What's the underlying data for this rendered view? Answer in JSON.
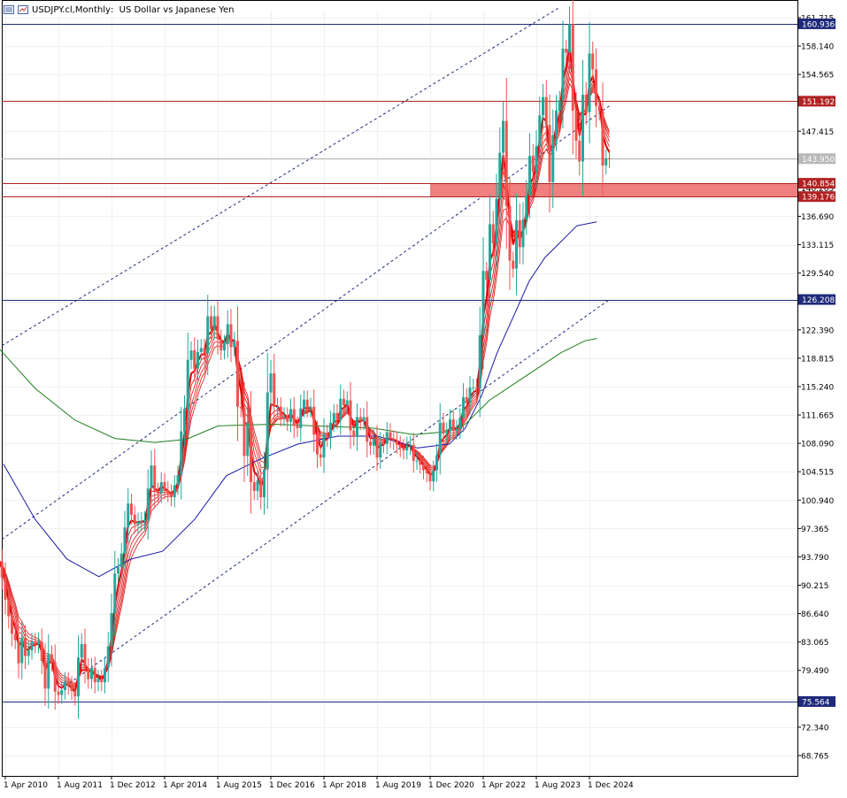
{
  "header": {
    "symbol": "USDJPY.cl",
    "timeframe": "Monthly",
    "description": "US Dollar vs Japanese Yen"
  },
  "colors": {
    "candle_up": "#26a69a",
    "candle_down": "#ef5350",
    "ma_fast": "#e00000",
    "ma_blue": "#1a1aa6",
    "ma_green": "#1e7d1e",
    "level_blue": "#1f2a7a",
    "level_red": "#b22222",
    "zone": "#f08080",
    "channel": "#1f2a7a"
  },
  "chart_data": {
    "type": "candlestick",
    "title": "USDJPY.cl, Monthly: US Dollar vs Japanese Yen",
    "ylim": [
      66.2,
      162.6
    ],
    "y_ticks": [
      "161.715",
      "158.140",
      "154.565",
      "150.990",
      "147.415",
      "143.840",
      "140.265",
      "136.690",
      "133.115",
      "129.540",
      "125.965",
      "122.390",
      "118.815",
      "115.240",
      "111.665",
      "108.090",
      "104.515",
      "100.940",
      "97.365",
      "93.790",
      "90.215",
      "86.640",
      "83.065",
      "79.490",
      "75.915",
      "72.340",
      "68.765"
    ],
    "x_labels": [
      "1 Apr 2010",
      "1 Aug 2011",
      "1 Dec 2012",
      "1 Apr 2014",
      "1 Aug 2015",
      "1 Dec 2016",
      "1 Apr 2018",
      "1 Aug 2019",
      "1 Dec 2020",
      "1 Apr 2022",
      "1 Aug 2023",
      "1 Dec 2024"
    ],
    "price_levels": [
      {
        "value": 160.936,
        "label": "160.936",
        "style": "blue"
      },
      {
        "value": 151.192,
        "label": "151.192",
        "style": "red"
      },
      {
        "value": 143.95,
        "label": "143.950",
        "style": "current"
      },
      {
        "value": 140.854,
        "label": "140.854",
        "style": "red"
      },
      {
        "value": 139.176,
        "label": "139.176",
        "style": "red"
      },
      {
        "value": 126.208,
        "label": "126.208",
        "style": "blue"
      },
      {
        "value": 75.564,
        "label": "75.564",
        "style": "blue"
      }
    ],
    "zone": {
      "from": 139.176,
      "to": 140.854,
      "start": "1 Dec 2020"
    },
    "channel_lines": [
      {
        "x1": "Mar 2010",
        "y1": 120.4,
        "x2": "Mar 2024",
        "y2": 163.0
      },
      {
        "x1": "Mar 2010",
        "y1": 96.0,
        "x2": "Jun 2025",
        "y2": 150.6
      },
      {
        "x1": "Oct 2011",
        "y1": 77.5,
        "x2": "Jun 2025",
        "y2": 126.2
      }
    ],
    "candles_monthly_close": [
      {
        "period": "2010",
        "values": [
          93.5,
          93.2,
          91.2,
          88.4,
          86.3,
          84.1,
          83.3,
          80.4,
          83.6,
          81.3,
          82.0,
          83.1
        ]
      },
      {
        "period": "2011",
        "values": [
          82.8,
          83.1,
          80.7,
          77.2,
          81.5,
          80.5,
          76.8,
          76.4,
          77.0,
          78.1,
          77.6,
          76.9
        ]
      },
      {
        "period": "2012",
        "values": [
          76.2,
          81.1,
          82.8,
          79.8,
          78.4,
          79.8,
          78.0,
          78.4,
          78.0,
          79.8,
          82.5,
          86.7
        ]
      },
      {
        "period": "2013",
        "values": [
          91.7,
          92.5,
          94.2,
          97.5,
          100.5,
          99.1,
          97.9,
          98.2,
          98.3,
          98.4,
          102.4,
          105.3
        ]
      },
      {
        "period": "2014",
        "values": [
          102.0,
          101.8,
          103.2,
          102.2,
          101.8,
          101.3,
          102.8,
          104.1,
          109.6,
          112.3,
          118.6,
          119.8
        ]
      },
      {
        "period": "2015",
        "values": [
          117.5,
          119.6,
          120.1,
          119.4,
          124.1,
          122.5,
          124.1,
          121.2,
          119.8,
          120.6,
          123.1,
          120.2
        ]
      },
      {
        "period": "2016",
        "values": [
          121.0,
          112.7,
          112.5,
          106.5,
          110.7,
          103.2,
          102.1,
          103.4,
          101.3,
          104.8,
          114.5,
          116.9
        ]
      },
      {
        "period": "2017",
        "values": [
          112.7,
          112.7,
          111.4,
          111.5,
          110.8,
          112.4,
          110.3,
          110.0,
          112.5,
          113.6,
          112.5,
          112.7
        ]
      },
      {
        "period": "2018",
        "values": [
          109.2,
          106.7,
          106.3,
          109.3,
          108.8,
          110.7,
          111.9,
          111.0,
          113.7,
          112.9,
          113.5,
          109.7
        ]
      },
      {
        "period": "2019",
        "values": [
          108.9,
          111.4,
          110.9,
          111.4,
          108.3,
          107.8,
          108.7,
          106.3,
          108.1,
          108.0,
          109.5,
          108.6
        ]
      },
      {
        "period": "2020",
        "values": [
          108.4,
          107.9,
          107.5,
          107.2,
          107.8,
          107.9,
          105.9,
          105.9,
          105.4,
          104.7,
          104.3,
          103.3
        ]
      },
      {
        "period": "2021",
        "values": [
          104.7,
          106.6,
          110.7,
          109.3,
          109.6,
          111.1,
          109.7,
          109.9,
          111.3,
          113.9,
          113.2,
          115.1
        ]
      },
      {
        "period": "2022",
        "values": [
          115.1,
          115.0,
          121.7,
          129.8,
          128.7,
          135.7,
          133.3,
          138.9,
          144.7,
          148.7,
          138.0,
          131.1
        ]
      },
      {
        "period": "2023",
        "values": [
          130.1,
          136.2,
          132.8,
          136.3,
          139.3,
          144.3,
          142.3,
          145.5,
          149.4,
          151.7,
          148.2,
          141.0
        ]
      },
      {
        "period": "2024",
        "values": [
          146.9,
          150.0,
          151.3,
          157.8,
          157.3,
          160.9,
          150.0,
          146.2,
          143.6,
          152.0,
          149.8,
          157.2
        ]
      },
      {
        "period": "2025",
        "values": [
          155.2,
          150.6,
          149.9,
          143.1,
          144.0,
          143.9
        ]
      }
    ],
    "moving_averages": [
      {
        "color": "ma_fast",
        "description": "fast EMA ribbon (6 lines)"
      },
      {
        "color": "ma_blue",
        "points": [
          [
            2010.2,
            105.5
          ],
          [
            2011.0,
            98.5
          ],
          [
            2011.8,
            93.5
          ],
          [
            2012.6,
            91.3
          ],
          [
            2013.4,
            93.5
          ],
          [
            2014.2,
            94.5
          ],
          [
            2015.0,
            98.5
          ],
          [
            2015.8,
            104.0
          ],
          [
            2016.6,
            106.0
          ],
          [
            2017.6,
            108.0
          ],
          [
            2018.6,
            109.0
          ],
          [
            2019.6,
            109.0
          ],
          [
            2020.6,
            107.5
          ],
          [
            2021.4,
            108.0
          ],
          [
            2021.8,
            110.0
          ],
          [
            2022.2,
            114.0
          ],
          [
            2022.6,
            119.5
          ],
          [
            2023.0,
            124.0
          ],
          [
            2023.4,
            128.5
          ],
          [
            2023.8,
            131.5
          ],
          [
            2024.2,
            133.5
          ],
          [
            2024.6,
            135.5
          ],
          [
            2025.1,
            136.0
          ]
        ]
      },
      {
        "color": "ma_green",
        "points": [
          [
            2010.1,
            120.0
          ],
          [
            2011.0,
            115.0
          ],
          [
            2012.0,
            111.0
          ],
          [
            2013.0,
            108.7
          ],
          [
            2014.0,
            108.2
          ],
          [
            2014.8,
            108.6
          ],
          [
            2015.6,
            110.3
          ],
          [
            2017.0,
            110.5
          ],
          [
            2018.5,
            110.2
          ],
          [
            2019.5,
            110.0
          ],
          [
            2020.5,
            109.2
          ],
          [
            2021.2,
            109.5
          ],
          [
            2021.8,
            110.5
          ],
          [
            2022.4,
            113.5
          ],
          [
            2023.0,
            115.5
          ],
          [
            2023.6,
            117.5
          ],
          [
            2024.2,
            119.5
          ],
          [
            2024.8,
            121.0
          ],
          [
            2025.1,
            121.3
          ]
        ]
      }
    ]
  }
}
